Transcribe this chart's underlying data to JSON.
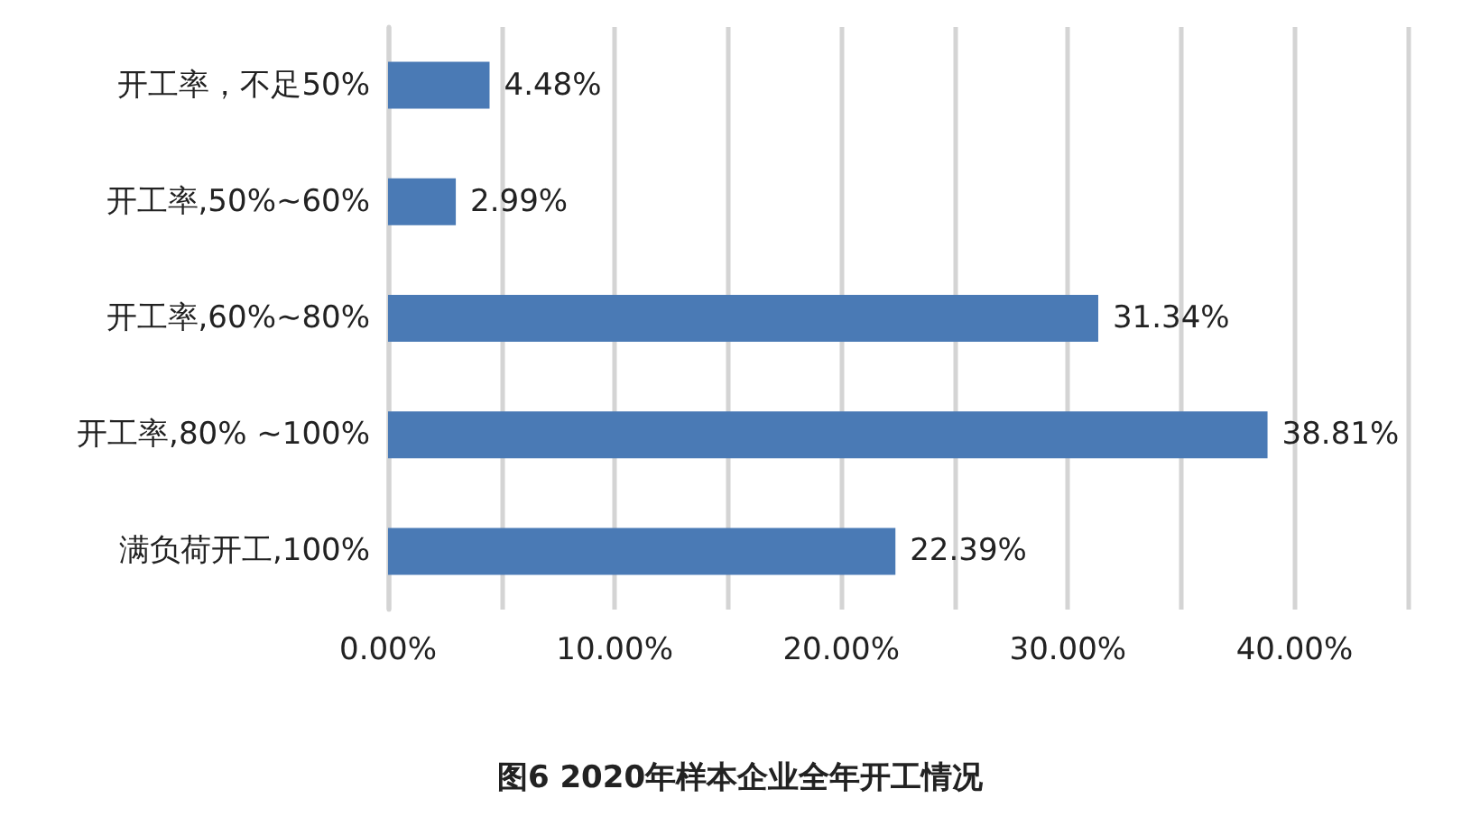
{
  "chart_data": {
    "type": "bar",
    "orientation": "horizontal",
    "title": "图6 2020年样本企业全年开工情况",
    "categories": [
      "开工率，不足50%",
      "开工率,50%~60%",
      "开工率,60%~80%",
      "开工率,80% ~100%",
      "满负荷开工,100%"
    ],
    "values": [
      4.48,
      2.99,
      31.34,
      38.81,
      22.39
    ],
    "value_labels": [
      "4.48%",
      "2.99%",
      "31.34%",
      "38.81%",
      "22.39%"
    ],
    "color": "#4a7ab5",
    "xlim": [
      0,
      45
    ],
    "xticks": [
      {
        "value": 0,
        "label": "0.00%"
      },
      {
        "value": 5,
        "label": null
      },
      {
        "value": 10,
        "label": "10.00%"
      },
      {
        "value": 15,
        "label": null
      },
      {
        "value": 20,
        "label": "20.00%"
      },
      {
        "value": 25,
        "label": null
      },
      {
        "value": 30,
        "label": "30.00%"
      },
      {
        "value": 35,
        "label": null
      },
      {
        "value": 40,
        "label": "40.00%"
      },
      {
        "value": 45,
        "label": null
      }
    ],
    "grid": "x"
  }
}
